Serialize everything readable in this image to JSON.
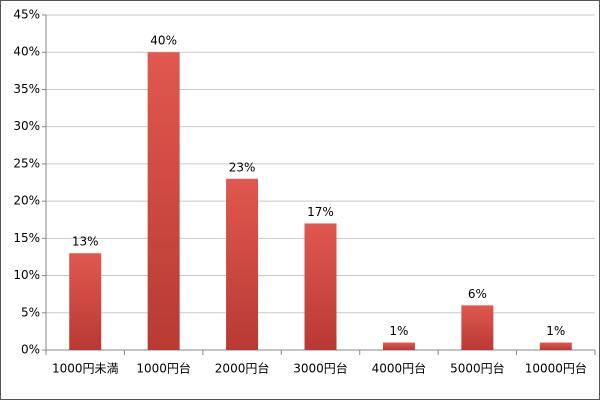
{
  "chart_data": {
    "type": "bar",
    "categories": [
      "1000円未満",
      "1000円台",
      "2000円台",
      "3000円台",
      "4000円台",
      "5000円台",
      "10000円台"
    ],
    "values": [
      13,
      40,
      23,
      17,
      1,
      6,
      1
    ],
    "value_labels": [
      "13%",
      "40%",
      "23%",
      "17%",
      "1%",
      "6%",
      "1%"
    ],
    "color": "#d9534a",
    "ylim": [
      0,
      45
    ],
    "yticks": [
      {
        "value": 0,
        "label": "0%"
      },
      {
        "value": 5,
        "label": "5%"
      },
      {
        "value": 10,
        "label": "10%"
      },
      {
        "value": 15,
        "label": "15%"
      },
      {
        "value": 20,
        "label": "20%"
      },
      {
        "value": 25,
        "label": "25%"
      },
      {
        "value": 30,
        "label": "30%"
      },
      {
        "value": 35,
        "label": "35%"
      },
      {
        "value": 40,
        "label": "40%"
      },
      {
        "value": 45,
        "label": "45%"
      }
    ],
    "grid": true
  }
}
